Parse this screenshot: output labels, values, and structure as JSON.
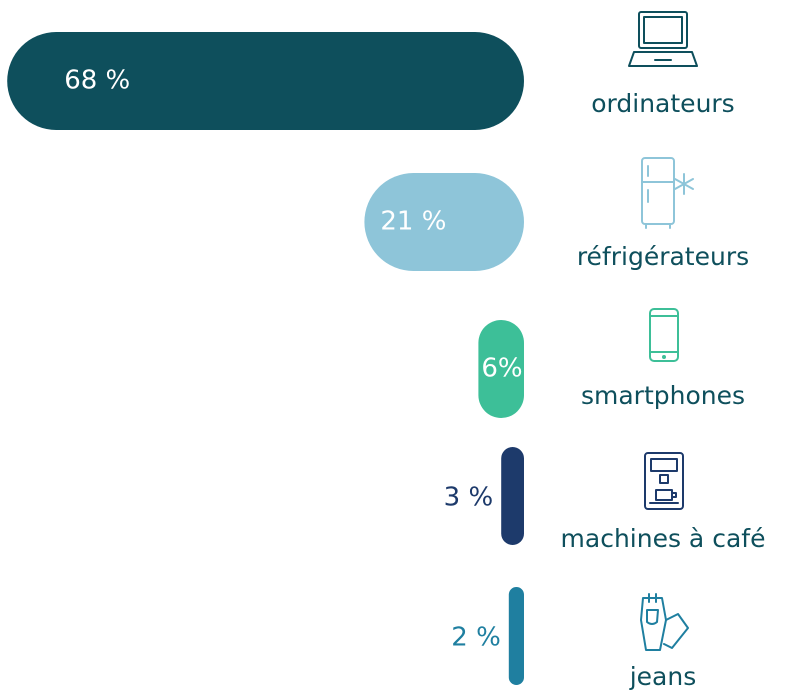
{
  "chart_data": {
    "type": "bar",
    "categories": [
      "ordinateurs",
      "réfrigérateurs",
      "smartphones",
      "machines à café",
      "jeans"
    ],
    "values": [
      68,
      21,
      6,
      3,
      2
    ],
    "value_labels": [
      "68 %",
      "21 %",
      "6%",
      "3 %",
      "2 %"
    ],
    "colors": [
      "#0e4f5c",
      "#8ec5d9",
      "#3dbf98",
      "#1d3a6b",
      "#1f7fa0"
    ]
  }
}
